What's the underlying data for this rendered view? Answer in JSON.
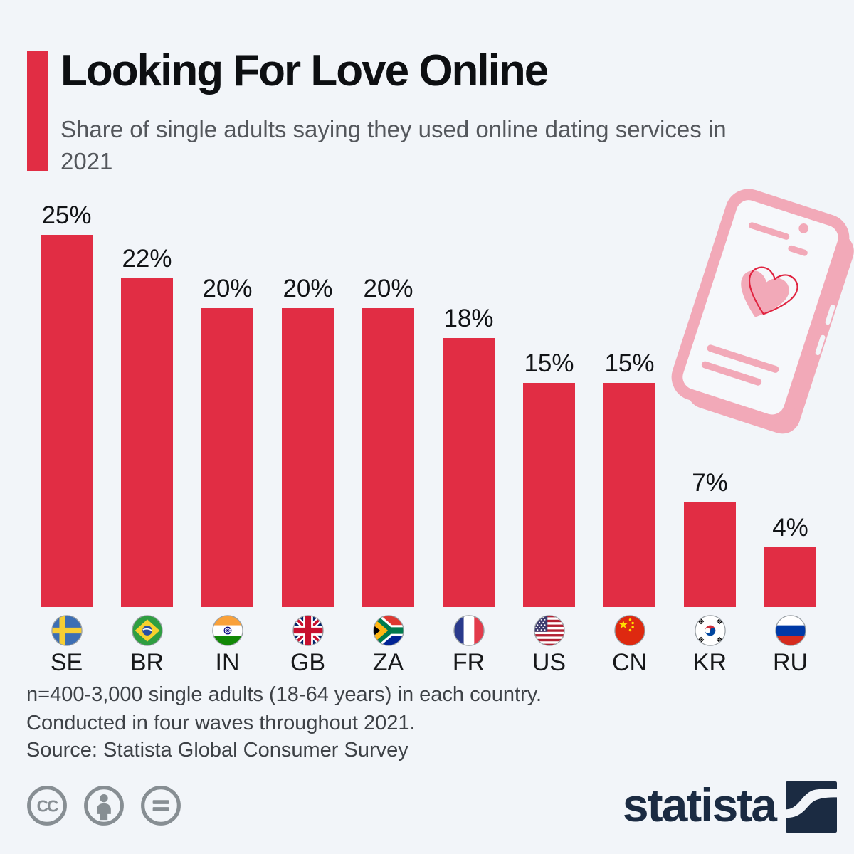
{
  "background_color": "#f2f5f9",
  "accent_color": "#e12d44",
  "header": {
    "title": "Looking For Love Online",
    "subtitle": "Share of single adults saying they used online dating services in 2021"
  },
  "chart_data": {
    "type": "bar",
    "title": "Looking For Love Online",
    "subtitle": "Share of single adults saying they used online dating services in 2021",
    "categories": [
      "SE",
      "BR",
      "IN",
      "GB",
      "ZA",
      "FR",
      "US",
      "CN",
      "KR",
      "RU"
    ],
    "values": [
      25,
      22,
      20,
      20,
      20,
      18,
      15,
      15,
      7,
      4
    ],
    "labels": [
      "25%",
      "22%",
      "20%",
      "20%",
      "20%",
      "18%",
      "15%",
      "15%",
      "7%",
      "4%"
    ],
    "flag_icons": [
      "flag-se-icon",
      "flag-br-icon",
      "flag-in-icon",
      "flag-gb-icon",
      "flag-za-icon",
      "flag-fr-icon",
      "flag-us-icon",
      "flag-cn-icon",
      "flag-kr-icon",
      "flag-ru-icon"
    ],
    "bar_color": "#e12d44",
    "unit": "%",
    "ylim": [
      0,
      25
    ],
    "grid": false,
    "legend": null
  },
  "illustration": {
    "icon": "phone-with-heart-icon",
    "pink": "#f2a9b8",
    "red_outline": "#e0233f"
  },
  "footer": {
    "note_line1": "n=400-3,000 single adults (18-64 years) in each country.",
    "note_line2": "Conducted in four waves throughout 2021.",
    "source": "Source: Statista Global Consumer Survey",
    "license_icons": [
      "cc-icon",
      "attribution-icon",
      "no-derivatives-icon"
    ],
    "brand": "statista",
    "brand_color": "#1b2b42"
  }
}
